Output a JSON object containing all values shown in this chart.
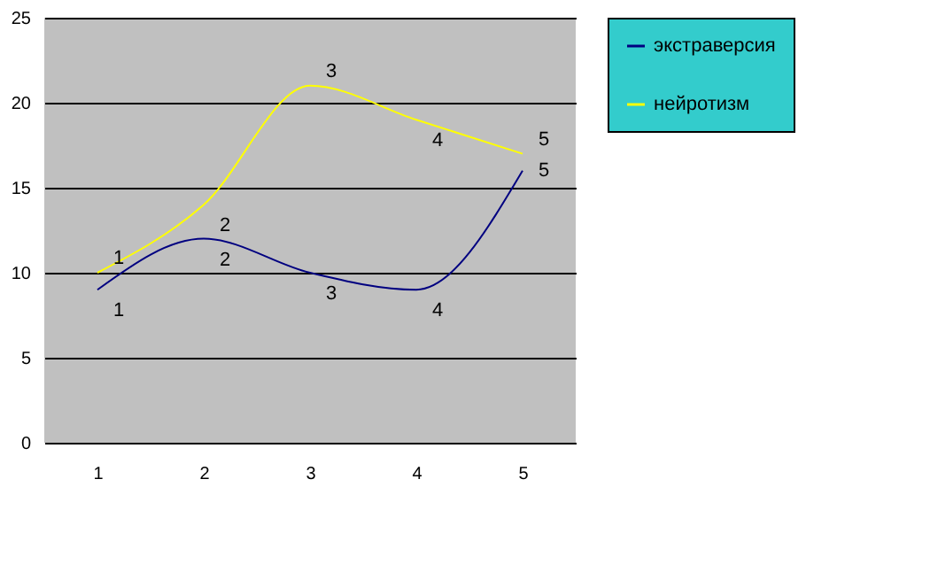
{
  "chart_data": {
    "type": "line",
    "categories": [
      "1",
      "2",
      "3",
      "4",
      "5"
    ],
    "series": [
      {
        "name": "экстраверсия",
        "color": "#000080",
        "values": [
          9,
          12,
          10,
          9,
          16
        ]
      },
      {
        "name": "нейротизм",
        "color": "#ffff00",
        "values": [
          10,
          14,
          21,
          19,
          17
        ]
      }
    ],
    "annotations": [
      {
        "text": "1",
        "x": "1",
        "y": 9
      },
      {
        "text": "2",
        "x": "2",
        "y": 12
      },
      {
        "text": "3",
        "x": "3",
        "y": 10
      },
      {
        "text": "4",
        "x": "4",
        "y": 9
      },
      {
        "text": "5",
        "x": "5",
        "y": 16
      },
      {
        "text": "1",
        "x": "1",
        "y": 10
      },
      {
        "text": "2",
        "x": "2",
        "y": 14
      },
      {
        "text": "3",
        "x": "3",
        "y": 21
      },
      {
        "text": "4",
        "x": "4",
        "y": 19
      },
      {
        "text": "5",
        "x": "5",
        "y": 17
      }
    ],
    "ylim": [
      0,
      25
    ],
    "yticks": [
      0,
      5,
      10,
      15,
      20,
      25
    ],
    "grid": "y",
    "legend": "right",
    "marker": "none",
    "line_style": "solid"
  }
}
